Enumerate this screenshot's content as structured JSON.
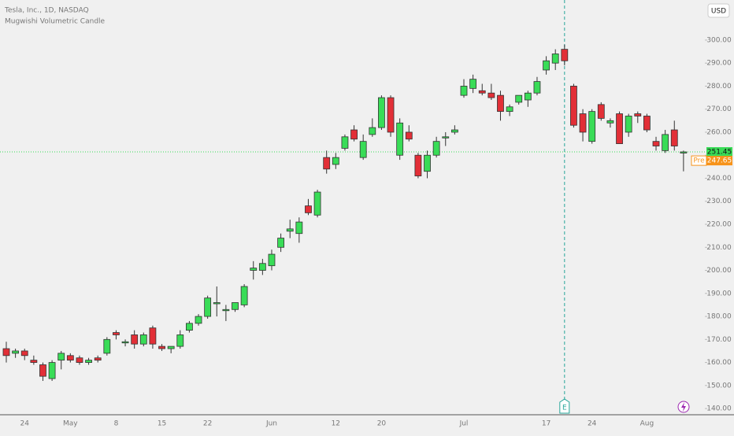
{
  "chart_data": {
    "type": "candlestick",
    "title": "Tesla, Inc., 1D, NASDAQ",
    "subtitle": "Mugwishi Volumetric Candle",
    "currency": "USD",
    "categories": [
      null,
      null,
      "24",
      null,
      null,
      null,
      null,
      "May",
      null,
      null,
      null,
      null,
      "8",
      null,
      null,
      null,
      null,
      "15",
      null,
      null,
      null,
      null,
      "22",
      null,
      null,
      null,
      null,
      null,
      null,
      "Jun",
      null,
      null,
      null,
      null,
      null,
      null,
      "12",
      null,
      null,
      null,
      null,
      "20",
      null,
      null,
      null,
      null,
      null,
      null,
      null,
      null,
      "Jul",
      null,
      null,
      null,
      null,
      null,
      null,
      null,
      null,
      "17",
      null,
      null,
      null,
      null,
      "24",
      null,
      null,
      null,
      null,
      null,
      "Aug",
      null,
      null,
      null,
      null
    ],
    "open": [
      166,
      164,
      165,
      161,
      159,
      153,
      161,
      163,
      162,
      160,
      162,
      164,
      173,
      169,
      172,
      168,
      175,
      167,
      166,
      167,
      174,
      177,
      180,
      186,
      183,
      183,
      185,
      200,
      200,
      202,
      210,
      217,
      216,
      228,
      224,
      249,
      246,
      253,
      261,
      249,
      259,
      262,
      275,
      250,
      260,
      250,
      243,
      250,
      258,
      260,
      276,
      279,
      278,
      277,
      276,
      269,
      273,
      274,
      277,
      287,
      290,
      296,
      280,
      268,
      256,
      272,
      264,
      268,
      260,
      268,
      267,
      256,
      252,
      261,
      251
    ],
    "high": [
      169,
      166,
      166,
      163,
      160,
      161,
      165,
      164,
      163,
      162,
      163,
      171,
      174,
      170,
      174,
      173,
      176,
      168,
      167,
      174,
      178,
      181,
      189,
      193,
      185,
      186,
      194,
      204,
      205,
      209,
      216,
      222,
      223,
      231,
      235,
      252,
      251,
      259,
      263,
      259,
      266,
      276,
      276,
      266,
      263,
      251,
      252,
      258,
      260,
      263,
      283,
      285,
      281,
      281,
      278,
      272,
      276,
      278,
      284,
      293,
      296,
      298,
      281,
      270,
      270,
      273,
      266,
      269,
      268,
      269,
      268,
      258,
      261,
      265,
      252
    ],
    "low": [
      160,
      162,
      161,
      159,
      152,
      152,
      157,
      160,
      159,
      159,
      160,
      163,
      170,
      167,
      166,
      167,
      166,
      165,
      164,
      166,
      173,
      176,
      179,
      180,
      178,
      182,
      184,
      196,
      198,
      200,
      208,
      214,
      212,
      224,
      223,
      242,
      244,
      252,
      256,
      248,
      258,
      261,
      258,
      248,
      256,
      240,
      240,
      249,
      254,
      259,
      275,
      277,
      276,
      274,
      265,
      267,
      272,
      271,
      276,
      285,
      287,
      289,
      262,
      256,
      255,
      265,
      262,
      255,
      258,
      264,
      260,
      252,
      251,
      252,
      243
    ],
    "close": [
      163,
      165,
      163,
      160,
      154,
      160,
      164,
      161,
      160,
      161,
      161,
      170,
      172,
      169,
      168,
      172,
      168,
      166,
      167,
      172,
      177,
      180,
      188,
      186,
      183,
      186,
      193,
      201,
      203,
      207,
      214,
      218,
      221,
      225,
      234,
      244,
      249,
      258,
      257,
      256,
      262,
      275,
      260,
      264,
      257,
      241,
      250,
      256,
      258,
      261,
      280,
      283,
      277,
      275,
      269,
      271,
      276,
      277,
      282,
      291,
      294,
      291,
      263,
      260,
      269,
      266,
      265,
      255,
      267,
      267,
      261,
      254,
      259,
      254,
      251.45
    ],
    "up_color": "#39dc57",
    "down_color": "#e22f37",
    "ylim": [
      137.3,
      317.4
    ],
    "yticks": [
      {
        "value": 140,
        "label": "140.00"
      },
      {
        "value": 150,
        "label": "150.00"
      },
      {
        "value": 160,
        "label": "160.00"
      },
      {
        "value": 170,
        "label": "170.00"
      },
      {
        "value": 180,
        "label": "180.00"
      },
      {
        "value": 190,
        "label": "190.00"
      },
      {
        "value": 200,
        "label": "200.00"
      },
      {
        "value": 210,
        "label": "210.00"
      },
      {
        "value": 220,
        "label": "220.00"
      },
      {
        "value": 230,
        "label": "230.00"
      },
      {
        "value": 240,
        "label": "240.00"
      },
      {
        "value": 250,
        "label": "250.00"
      },
      {
        "value": 260,
        "label": "260.00"
      },
      {
        "value": 270,
        "label": "270.00"
      },
      {
        "value": 280,
        "label": "280.00"
      },
      {
        "value": 290,
        "label": "290.00"
      },
      {
        "value": 300,
        "label": "300.00"
      }
    ],
    "last_price": 251.45,
    "pre_label": "Pre",
    "pre_price": 247.65,
    "earnings_label": "E",
    "earnings_index": 61
  }
}
